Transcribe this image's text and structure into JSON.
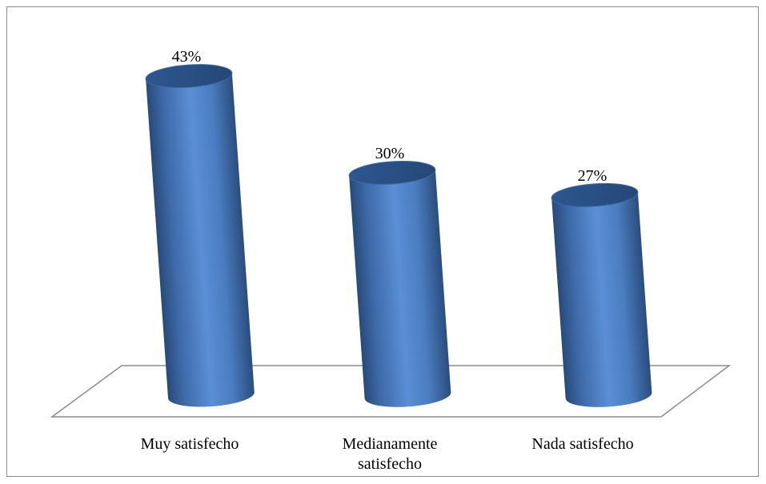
{
  "chart_data": {
    "type": "bar",
    "categories": [
      [
        "Muy satisfecho"
      ],
      [
        "Medianamente",
        "satisfecho"
      ],
      [
        "Nada satisfecho"
      ]
    ],
    "values": [
      43,
      30,
      27
    ],
    "data_labels": [
      "43%",
      "30%",
      "27%"
    ],
    "unit": "%",
    "bar_style": "3d-cylinder",
    "colors": {
      "bar": "#4f81bd",
      "bar_dark": "#2d4f7c",
      "bar_light": "#7ea7dc",
      "floor": "#8c8c8c"
    },
    "grid": false,
    "legend": "none",
    "title": "",
    "xlabel": "",
    "ylabel": ""
  }
}
